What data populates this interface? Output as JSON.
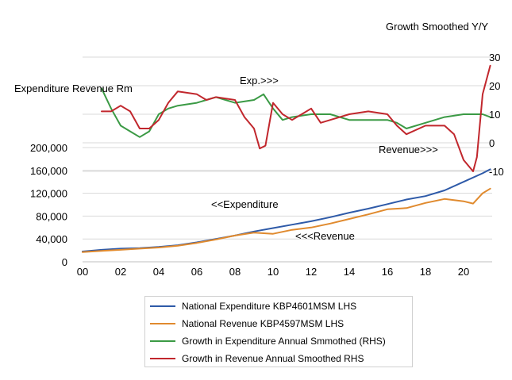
{
  "chart_data": {
    "type": "line",
    "title": "",
    "left_axis_title": "Expenditure Revenue Rm",
    "right_axis_title": "Growth Smoothed Y/Y",
    "x_ticks": [
      "00",
      "02",
      "04",
      "06",
      "08",
      "10",
      "12",
      "14",
      "16",
      "18",
      "20"
    ],
    "y_left_ticks": [
      "0",
      "40,000",
      "80,000",
      "120,000",
      "160,000",
      "200,000"
    ],
    "y_left_values": [
      0,
      40000,
      80000,
      120000,
      160000,
      200000
    ],
    "y_right_ticks": [
      "-10",
      "0",
      "10",
      "20",
      "30"
    ],
    "y_right_values": [
      -10,
      0,
      10,
      20,
      30
    ],
    "xlim": [
      2000,
      2021.5
    ],
    "ylim_left": [
      0,
      200000
    ],
    "ylim_right": [
      -10,
      30
    ],
    "annotations": {
      "exp_top": "Exp.>>>",
      "rev_right": "Revenue>>>",
      "exp_lhs": "<<Expenditure",
      "rev_lhs": "<<<Revenue"
    },
    "series": [
      {
        "name": "National Expenditure KBP4601MSM LHS",
        "color": "#2e5aa8",
        "axis": "left",
        "x": [
          2000,
          2001,
          2002,
          2003,
          2004,
          2005,
          2006,
          2007,
          2008,
          2009,
          2010,
          2011,
          2012,
          2013,
          2014,
          2015,
          2016,
          2017,
          2018,
          2019,
          2020,
          2021,
          2021.4
        ],
        "y": [
          18000,
          21000,
          23000,
          24000,
          26000,
          29000,
          34000,
          40000,
          46000,
          53000,
          59000,
          65000,
          71000,
          78000,
          86000,
          93000,
          101000,
          109000,
          115000,
          125000,
          140000,
          155000,
          162000
        ]
      },
      {
        "name": "National Revenue KBP4597MSM LHS",
        "color": "#e08a2e",
        "axis": "left",
        "x": [
          2000,
          2001,
          2002,
          2003,
          2004,
          2005,
          2006,
          2007,
          2008,
          2009,
          2010,
          2011,
          2012,
          2013,
          2014,
          2015,
          2016,
          2017,
          2018,
          2019,
          2020,
          2020.5,
          2021,
          2021.4
        ],
        "y": [
          17000,
          19000,
          21000,
          23000,
          25000,
          28000,
          33000,
          39000,
          46000,
          51000,
          49000,
          56000,
          60000,
          67000,
          75000,
          83000,
          92000,
          94000,
          103000,
          110000,
          106000,
          102000,
          120000,
          128000
        ]
      },
      {
        "name": "Growth in Expenditure Annual Smmothed (RHS)",
        "color": "#3b9a45",
        "axis": "right",
        "x": [
          2001,
          2001.5,
          2002,
          2002.5,
          2003,
          2003.5,
          2004,
          2004.5,
          2005,
          2006,
          2006.5,
          2007,
          2008,
          2009,
          2009.5,
          2010,
          2010.5,
          2011,
          2012,
          2013,
          2014,
          2015,
          2016,
          2016.5,
          2017,
          2018,
          2019,
          2020,
          2020.5,
          2021,
          2021.4
        ],
        "y": [
          19,
          12,
          6,
          4,
          2,
          4,
          10,
          12,
          13,
          14,
          15,
          16,
          14,
          15,
          17,
          12,
          8,
          9,
          10,
          10,
          8,
          8,
          8,
          7,
          5,
          7,
          9,
          10,
          10,
          10,
          9
        ]
      },
      {
        "name": "Growth in Revenue Annual Smoothed RHS",
        "color": "#c1272d",
        "axis": "right",
        "x": [
          2001,
          2001.5,
          2002,
          2002.5,
          2003,
          2003.5,
          2004,
          2004.5,
          2005,
          2006,
          2006.5,
          2007,
          2008,
          2008.5,
          2009,
          2009.3,
          2009.6,
          2010,
          2010.5,
          2011,
          2012,
          2012.5,
          2013,
          2014,
          2015,
          2016,
          2016.5,
          2017,
          2018,
          2019,
          2019.5,
          2020,
          2020.5,
          2020.7,
          2021,
          2021.4
        ],
        "y": [
          11,
          11,
          13,
          11,
          5,
          5,
          8,
          14,
          18,
          17,
          15,
          16,
          15,
          9,
          5,
          -2,
          -1,
          14,
          10,
          8,
          12,
          7,
          8,
          10,
          11,
          10,
          6,
          3,
          6,
          6,
          3,
          -6,
          -10,
          -5,
          17,
          27
        ]
      }
    ]
  }
}
